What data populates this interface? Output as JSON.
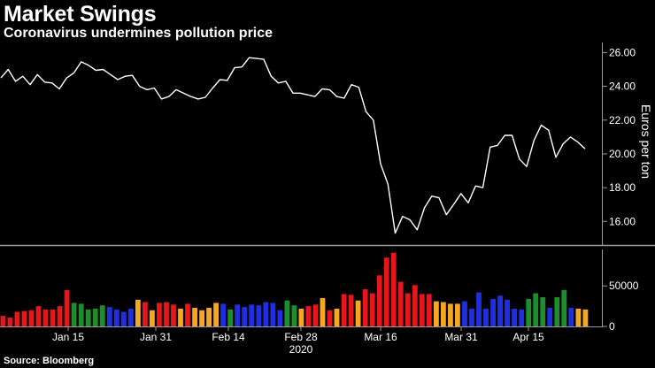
{
  "title": "Market Swings",
  "subtitle": "Coronavirus undermines pollution price",
  "source": "Source: Bloomberg",
  "colors": {
    "background": "#000000",
    "line": "#ffffff",
    "axis": "#9a9a9a",
    "volume_colors": [
      "#e5161c",
      "#f5a623",
      "#1a8f2c",
      "#1f2fe0"
    ]
  },
  "chart_data": [
    {
      "type": "line",
      "title": "",
      "ylabel": "Euros per ton",
      "ylim": [
        14.6,
        26.6
      ],
      "yticks": [
        "26.00",
        "24.00",
        "22.00",
        "20.00",
        "18.00",
        "16.00"
      ],
      "ytick_values": [
        26,
        24,
        22,
        20,
        18,
        16
      ],
      "grid": false,
      "series": [
        {
          "values": [
            24.5,
            25.0,
            24.3,
            24.6,
            24.1,
            24.7,
            24.25,
            24.2,
            23.85,
            24.5,
            24.8,
            25.45,
            25.25,
            24.95,
            25.0,
            24.7,
            24.4,
            24.6,
            24.65,
            24.0,
            23.8,
            23.9,
            23.25,
            23.4,
            23.8,
            23.6,
            23.4,
            23.25,
            23.35,
            23.9,
            24.4,
            24.35,
            25.1,
            25.15,
            25.7,
            25.65,
            25.6,
            24.6,
            24.2,
            24.3,
            23.6,
            23.6,
            23.5,
            23.4,
            23.85,
            23.8,
            23.4,
            23.3,
            24.1,
            23.95,
            22.5,
            22.0,
            19.4,
            18.2,
            15.3,
            16.3,
            16.1,
            15.5,
            16.8,
            17.5,
            17.4,
            16.4,
            17.0,
            17.65,
            17.1,
            18.1,
            18.0,
            20.4,
            20.5,
            21.1,
            21.1,
            19.7,
            19.25,
            20.8,
            21.7,
            21.4,
            19.8,
            20.6,
            21.0,
            20.7,
            20.3
          ]
        }
      ]
    },
    {
      "type": "bar",
      "title": "",
      "ylim": [
        0,
        95000
      ],
      "yticks": [
        "50000",
        "0"
      ],
      "ytick_values": [
        50000,
        0
      ],
      "x_ticks": [
        "Jan 15",
        "Jan 31",
        "Feb 14",
        "Feb 28",
        "Mar 16",
        "Mar 31",
        "Apr 15"
      ],
      "x_year": "2020",
      "values": [
        13000,
        11000,
        18000,
        19000,
        20000,
        25000,
        21000,
        21000,
        25000,
        45000,
        29000,
        28000,
        21000,
        22000,
        26000,
        24000,
        21000,
        18000,
        22000,
        33000,
        30000,
        20000,
        29000,
        30000,
        27000,
        22000,
        28000,
        23000,
        20000,
        23000,
        29000,
        28000,
        21000,
        27000,
        24000,
        27000,
        26000,
        30000,
        29000,
        20000,
        32000,
        26000,
        22000,
        25000,
        27000,
        35000,
        20000,
        22000,
        40000,
        39000,
        32000,
        46000,
        41000,
        63000,
        85000,
        91000,
        55000,
        41000,
        51000,
        40000,
        40000,
        31000,
        30000,
        28000,
        28000,
        31000,
        22000,
        42000,
        22000,
        34000,
        38000,
        33000,
        22000,
        21000,
        34000,
        41000,
        36000,
        23000,
        36000,
        45000,
        23000,
        22000,
        21000
      ],
      "color_groups": [
        "red",
        "red",
        "red",
        "red",
        "red",
        "red",
        "red",
        "red",
        "red",
        "red",
        "green",
        "green",
        "green",
        "green",
        "green",
        "blue",
        "blue",
        "blue",
        "blue",
        "orange",
        "red",
        "orange",
        "red",
        "red",
        "red",
        "orange",
        "red",
        "orange",
        "orange",
        "orange",
        "orange",
        "blue",
        "green",
        "blue",
        "blue",
        "blue",
        "blue",
        "blue",
        "blue",
        "blue",
        "green",
        "green",
        "orange",
        "red",
        "red",
        "orange",
        "red",
        "orange",
        "red",
        "red",
        "orange",
        "red",
        "red",
        "red",
        "red",
        "red",
        "red",
        "red",
        "red",
        "red",
        "red",
        "orange",
        "orange",
        "orange",
        "orange",
        "blue",
        "blue",
        "blue",
        "blue",
        "blue",
        "blue",
        "blue",
        "blue",
        "blue",
        "green",
        "green",
        "green",
        "blue",
        "green",
        "green",
        "blue",
        "orange",
        "orange"
      ]
    }
  ]
}
